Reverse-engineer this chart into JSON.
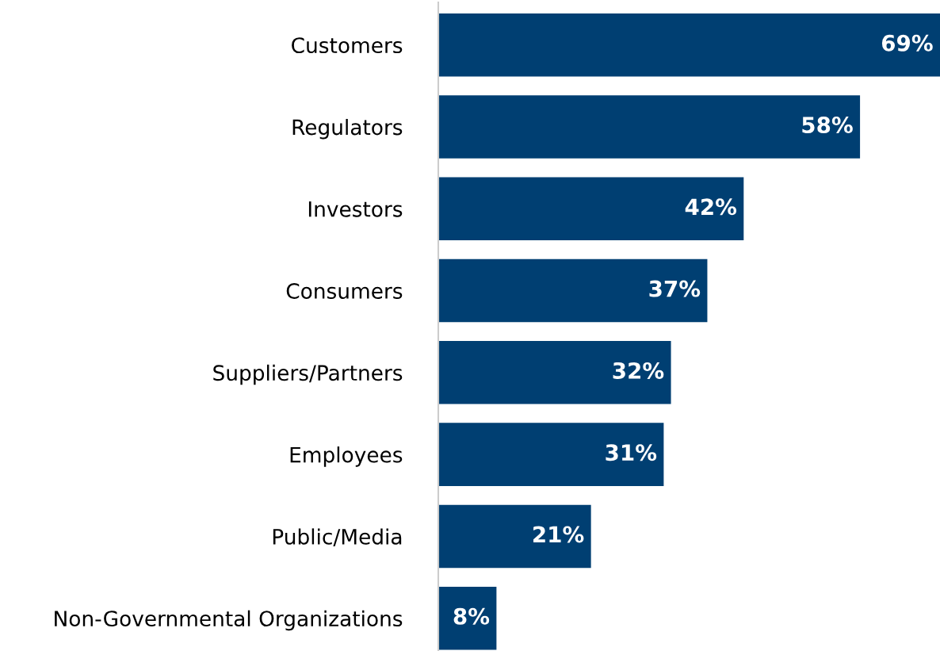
{
  "chart_data": {
    "type": "bar",
    "orientation": "horizontal",
    "categories": [
      "Customers",
      "Regulators",
      "Investors",
      "Consumers",
      "Suppliers/Partners",
      "Employees",
      "Public/Media",
      "Non-Governmental Organizations"
    ],
    "values": [
      69,
      58,
      42,
      37,
      32,
      31,
      21,
      8
    ],
    "value_labels": [
      "69%",
      "58%",
      "42%",
      "37%",
      "32%",
      "31%",
      "21%",
      "8%"
    ],
    "color": "#003f72",
    "xlim": [
      0,
      69
    ],
    "tick_labels": "y",
    "grid": false,
    "legend": false
  }
}
